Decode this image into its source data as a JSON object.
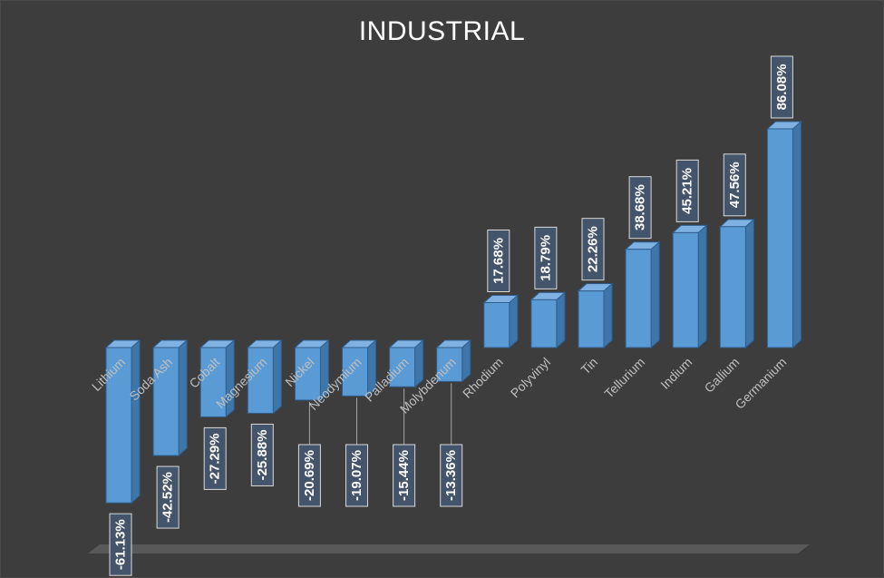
{
  "chart_data": {
    "type": "bar",
    "title": "INDUSTRIAL",
    "xlabel": "",
    "ylabel": "",
    "ylim": [
      -70,
      100
    ],
    "grid": false,
    "legend": "none",
    "categories": [
      "Lithium",
      "Soda Ash",
      "Cobalt",
      "Magnesium",
      "Nickel",
      "Neodymium",
      "Palladium",
      "Molybdenum",
      "Rhodium",
      "Polyvinyl",
      "Tin",
      "Tellurium",
      "Indium",
      "Gallium",
      "Germanium"
    ],
    "values": [
      -61.13,
      -42.52,
      -27.29,
      -25.88,
      -20.69,
      -19.07,
      -15.44,
      -13.36,
      17.68,
      18.79,
      22.26,
      38.68,
      45.21,
      47.56,
      86.08
    ],
    "labels": [
      "-61.13%",
      "-42.52%",
      "-27.29%",
      "-25.88%",
      "-20.69%",
      "-19.07%",
      "-15.44%",
      "-13.36%",
      "17.68%",
      "18.79%",
      "22.26%",
      "38.68%",
      "45.21%",
      "47.56%",
      "86.08%"
    ]
  },
  "colors": {
    "background": "#3d3d3d",
    "bar_front": "#5b9bd5",
    "bar_side": "#3e76aa",
    "bar_top": "#7fb2e2",
    "bar_edge": "#2f5f8f",
    "label_box": "#44546a",
    "label_border": "#d9d9d9",
    "floor": "#595959"
  }
}
